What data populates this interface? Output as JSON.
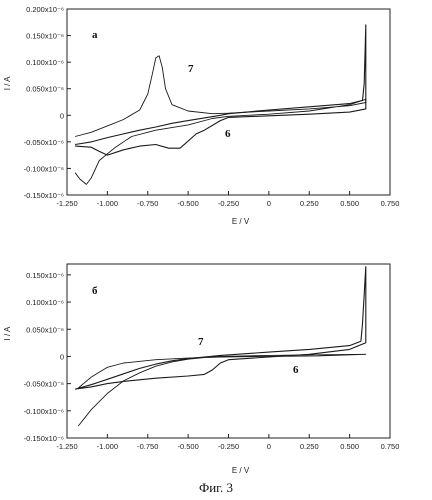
{
  "caption": "Фиг. 3",
  "chart_data": [
    {
      "type": "line",
      "panel_label": "а",
      "xlabel": "E / V",
      "ylabel": "I / A",
      "xlim": [
        -1.25,
        0.75
      ],
      "ylim": [
        -0.15,
        0.2
      ],
      "x_ticks": [
        "-1.250",
        "-1.000",
        "-0.750",
        "-0.500",
        "-0.250",
        "0",
        "0.250",
        "0.500",
        "0.750"
      ],
      "y_ticks": [
        "-0.150x10⁻⁶",
        "-0.100x10⁻⁶",
        "-0.050x10⁻⁶",
        "0",
        "0.050x10⁻⁶",
        "0.100x10⁻⁶",
        "0.150x10⁻⁶",
        "0.200x10⁻⁶"
      ],
      "annotations": [
        "7",
        "6"
      ],
      "series": [
        {
          "label": "7",
          "points": [
            [
              -1.2,
              -0.04
            ],
            [
              -1.1,
              -0.032
            ],
            [
              -1.0,
              -0.02
            ],
            [
              -0.9,
              -0.008
            ],
            [
              -0.8,
              0.01
            ],
            [
              -0.75,
              0.04
            ],
            [
              -0.72,
              0.08
            ],
            [
              -0.7,
              0.108
            ],
            [
              -0.68,
              0.112
            ],
            [
              -0.66,
              0.09
            ],
            [
              -0.64,
              0.05
            ],
            [
              -0.6,
              0.02
            ],
            [
              -0.5,
              0.008
            ],
            [
              -0.35,
              0.003
            ],
            [
              -0.25,
              0.004
            ],
            [
              0.0,
              0.008
            ],
            [
              0.25,
              0.012
            ],
            [
              0.5,
              0.018
            ],
            [
              0.6,
              0.024
            ],
            [
              0.6,
              0.03
            ],
            [
              0.5,
              0.02
            ],
            [
              0.25,
              0.008
            ],
            [
              0.0,
              0.002
            ],
            [
              -0.25,
              -0.002
            ],
            [
              -0.35,
              -0.006
            ],
            [
              -0.5,
              -0.018
            ],
            [
              -0.7,
              -0.028
            ],
            [
              -0.85,
              -0.04
            ],
            [
              -0.95,
              -0.06
            ],
            [
              -1.05,
              -0.085
            ],
            [
              -1.1,
              -0.118
            ],
            [
              -1.13,
              -0.13
            ],
            [
              -1.17,
              -0.12
            ],
            [
              -1.2,
              -0.108
            ]
          ]
        },
        {
          "label": "6",
          "points": [
            [
              -1.2,
              -0.055
            ],
            [
              -1.1,
              -0.05
            ],
            [
              -1.0,
              -0.042
            ],
            [
              -0.9,
              -0.035
            ],
            [
              -0.8,
              -0.028
            ],
            [
              -0.7,
              -0.022
            ],
            [
              -0.6,
              -0.015
            ],
            [
              -0.5,
              -0.01
            ],
            [
              -0.4,
              -0.005
            ],
            [
              -0.3,
              0.0
            ],
            [
              -0.25,
              0.003
            ],
            [
              0.0,
              0.01
            ],
            [
              0.25,
              0.016
            ],
            [
              0.5,
              0.022
            ],
            [
              0.58,
              0.028
            ],
            [
              0.59,
              0.06
            ],
            [
              0.6,
              0.17
            ],
            [
              0.6,
              0.03
            ],
            [
              0.6,
              0.012
            ],
            [
              0.5,
              0.006
            ],
            [
              0.25,
              0.002
            ],
            [
              0.0,
              -0.001
            ],
            [
              -0.25,
              -0.004
            ],
            [
              -0.3,
              -0.01
            ],
            [
              -0.4,
              -0.028
            ],
            [
              -0.45,
              -0.035
            ],
            [
              -0.55,
              -0.062
            ],
            [
              -0.62,
              -0.062
            ],
            [
              -0.7,
              -0.055
            ],
            [
              -0.8,
              -0.058
            ],
            [
              -0.9,
              -0.065
            ],
            [
              -1.0,
              -0.075
            ],
            [
              -1.05,
              -0.068
            ],
            [
              -1.1,
              -0.06
            ],
            [
              -1.2,
              -0.058
            ]
          ]
        }
      ]
    },
    {
      "type": "line",
      "panel_label": "б",
      "xlabel": "E / V",
      "ylabel": "I / A",
      "xlim": [
        -1.25,
        0.75
      ],
      "ylim": [
        -0.15,
        0.17
      ],
      "x_ticks": [
        "-1.250",
        "-1.000",
        "-0.750",
        "-0.500",
        "-0.250",
        "0",
        "0.250",
        "0.500",
        "0.750"
      ],
      "y_ticks": [
        "-0.150x10⁻⁶",
        "-0.100x10⁻⁶",
        "-0.050x10⁻⁶",
        "0",
        "0.050x10⁻⁶",
        "0.100x10⁻⁶",
        "0.150x10⁻⁶"
      ],
      "annotations": [
        "7",
        "6"
      ],
      "series": [
        {
          "label": "7",
          "points": [
            [
              -1.18,
              -0.128
            ],
            [
              -1.1,
              -0.098
            ],
            [
              -1.0,
              -0.068
            ],
            [
              -0.9,
              -0.045
            ],
            [
              -0.8,
              -0.03
            ],
            [
              -0.7,
              -0.018
            ],
            [
              -0.6,
              -0.01
            ],
            [
              -0.5,
              -0.005
            ],
            [
              -0.4,
              -0.002
            ],
            [
              -0.3,
              0.0
            ],
            [
              0.0,
              0.002
            ],
            [
              0.3,
              0.003
            ],
            [
              0.6,
              0.004
            ],
            [
              0.6,
              0.004
            ],
            [
              0.3,
              0.001
            ],
            [
              0.0,
              0.0
            ],
            [
              -0.3,
              -0.001
            ],
            [
              -0.5,
              -0.003
            ],
            [
              -0.7,
              -0.006
            ],
            [
              -0.9,
              -0.012
            ],
            [
              -1.0,
              -0.02
            ],
            [
              -1.1,
              -0.038
            ],
            [
              -1.18,
              -0.058
            ]
          ]
        },
        {
          "label": "6",
          "points": [
            [
              -1.2,
              -0.06
            ],
            [
              -1.1,
              -0.052
            ],
            [
              -1.0,
              -0.042
            ],
            [
              -0.9,
              -0.032
            ],
            [
              -0.8,
              -0.022
            ],
            [
              -0.7,
              -0.014
            ],
            [
              -0.6,
              -0.008
            ],
            [
              -0.5,
              -0.004
            ],
            [
              -0.4,
              -0.001
            ],
            [
              -0.3,
              0.002
            ],
            [
              0.0,
              0.008
            ],
            [
              0.25,
              0.013
            ],
            [
              0.5,
              0.02
            ],
            [
              0.57,
              0.028
            ],
            [
              0.58,
              0.06
            ],
            [
              0.6,
              0.165
            ],
            [
              0.6,
              0.025
            ],
            [
              0.5,
              0.013
            ],
            [
              0.25,
              0.004
            ],
            [
              0.0,
              -0.001
            ],
            [
              -0.25,
              -0.006
            ],
            [
              -0.3,
              -0.012
            ],
            [
              -0.35,
              -0.025
            ],
            [
              -0.4,
              -0.033
            ],
            [
              -0.5,
              -0.036
            ],
            [
              -0.7,
              -0.04
            ],
            [
              -0.9,
              -0.046
            ],
            [
              -1.0,
              -0.05
            ],
            [
              -1.1,
              -0.056
            ],
            [
              -1.2,
              -0.06
            ]
          ]
        }
      ]
    }
  ]
}
